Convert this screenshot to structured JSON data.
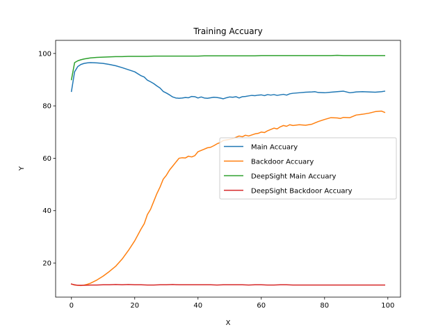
{
  "chart_data": {
    "type": "line",
    "title": "Training Accuary",
    "xlabel": "X",
    "ylabel": "Y",
    "xlim": [
      -5,
      104
    ],
    "ylim": [
      7,
      105
    ],
    "xticks": [
      0,
      20,
      40,
      60,
      80,
      100
    ],
    "yticks": [
      20,
      40,
      60,
      80,
      100
    ],
    "grid": false,
    "legend_position": "center-right",
    "series": [
      {
        "name": "Main Accuary",
        "color": "#1f77b4",
        "x": [
          0,
          1,
          2,
          3,
          4,
          5,
          6,
          8,
          10,
          12,
          14,
          16,
          18,
          20,
          22,
          23,
          24,
          25,
          26,
          27,
          28,
          29,
          30,
          31,
          32,
          33,
          34,
          35,
          36,
          37,
          38,
          39,
          40,
          41,
          42,
          43,
          44,
          45,
          46,
          47,
          48,
          49,
          50,
          51,
          52,
          53,
          54,
          55,
          56,
          57,
          58,
          59,
          60,
          61,
          62,
          63,
          64,
          65,
          66,
          67,
          68,
          69,
          70,
          72,
          74,
          76,
          77,
          78,
          80,
          82,
          84,
          85,
          86,
          88,
          90,
          92,
          94,
          96,
          98,
          99
        ],
        "y": [
          85.5,
          93,
          95,
          95.8,
          96.2,
          96.4,
          96.5,
          96.4,
          96.2,
          95.8,
          95.3,
          94.6,
          93.8,
          93.0,
          91.5,
          91.0,
          89.8,
          89.2,
          88.5,
          87.6,
          86.8,
          85.5,
          84.9,
          84.2,
          83.4,
          83.0,
          82.9,
          83.0,
          83.2,
          83.1,
          83.6,
          83.5,
          83.0,
          83.4,
          83.0,
          82.9,
          83.1,
          83.3,
          83.2,
          83.0,
          82.7,
          83.1,
          83.4,
          83.3,
          83.5,
          83.0,
          83.5,
          83.6,
          83.8,
          84.0,
          83.9,
          84.1,
          84.2,
          83.9,
          84.3,
          84.1,
          84.3,
          84.0,
          84.2,
          84.4,
          84.1,
          84.6,
          84.8,
          85.0,
          85.2,
          85.3,
          85.4,
          85.1,
          85.0,
          85.2,
          85.4,
          85.5,
          85.6,
          85.0,
          85.3,
          85.4,
          85.3,
          85.2,
          85.4,
          85.6
        ]
      },
      {
        "name": "Backdoor Accuary",
        "color": "#ff7f0e",
        "x": [
          0,
          1,
          2,
          3,
          4,
          5,
          6,
          8,
          10,
          12,
          14,
          16,
          18,
          20,
          22,
          23,
          24,
          25,
          26,
          27,
          28,
          29,
          30,
          31,
          32,
          33,
          34,
          35,
          36,
          37,
          38,
          39,
          40,
          41,
          42,
          43,
          44,
          45,
          46,
          47,
          48,
          49,
          50,
          51,
          52,
          53,
          54,
          55,
          56,
          57,
          58,
          59,
          60,
          61,
          62,
          63,
          64,
          65,
          66,
          67,
          68,
          69,
          70,
          72,
          74,
          76,
          77,
          78,
          80,
          82,
          84,
          85,
          86,
          88,
          90,
          92,
          94,
          96,
          98,
          99
        ],
        "y": [
          12.0,
          11.6,
          11.5,
          11.4,
          11.6,
          11.9,
          12.3,
          13.5,
          15.0,
          16.8,
          18.8,
          21.5,
          24.8,
          28.5,
          33.0,
          35.0,
          38.5,
          40.5,
          43.5,
          46.5,
          49.0,
          52.0,
          53.5,
          55.5,
          57.0,
          58.5,
          60.0,
          60.2,
          60.1,
          60.8,
          60.5,
          61.0,
          62.5,
          63.0,
          63.5,
          64.0,
          64.2,
          64.8,
          65.5,
          66.0,
          66.8,
          67.0,
          67.2,
          67.5,
          68.0,
          68.5,
          68.2,
          68.8,
          68.5,
          68.9,
          69.3,
          69.5,
          70.0,
          69.8,
          70.5,
          71.0,
          71.5,
          71.2,
          72.0,
          72.5,
          72.2,
          72.8,
          72.5,
          72.8,
          72.6,
          73.0,
          73.5,
          74.0,
          74.8,
          75.5,
          75.4,
          75.2,
          75.6,
          75.5,
          76.5,
          76.8,
          77.2,
          77.8,
          78.0,
          77.5
        ]
      },
      {
        "name": "DeepSight Main Accuary",
        "color": "#2ca02c",
        "x": [
          0,
          1,
          2,
          3,
          4,
          5,
          6,
          8,
          10,
          12,
          14,
          16,
          18,
          20,
          22,
          24,
          26,
          28,
          30,
          32,
          34,
          36,
          38,
          40,
          42,
          44,
          46,
          48,
          50,
          52,
          54,
          56,
          58,
          60,
          62,
          64,
          66,
          68,
          70,
          72,
          74,
          76,
          78,
          80,
          82,
          84,
          86,
          88,
          90,
          92,
          94,
          96,
          98,
          99
        ],
        "y": [
          90.0,
          96.5,
          97.2,
          97.6,
          97.9,
          98.1,
          98.3,
          98.5,
          98.6,
          98.7,
          98.8,
          98.8,
          98.9,
          98.9,
          98.9,
          98.9,
          99.0,
          99.0,
          99.0,
          99.0,
          99.0,
          99.0,
          99.0,
          99.0,
          99.1,
          99.1,
          99.1,
          99.1,
          99.1,
          99.1,
          99.1,
          99.1,
          99.1,
          99.2,
          99.2,
          99.2,
          99.2,
          99.2,
          99.2,
          99.2,
          99.2,
          99.2,
          99.2,
          99.2,
          99.2,
          99.3,
          99.2,
          99.2,
          99.2,
          99.2,
          99.2,
          99.2,
          99.2,
          99.2
        ]
      },
      {
        "name": "DeepSight Backdoor Accuary",
        "color": "#d62728",
        "x": [
          0,
          1,
          2,
          4,
          6,
          8,
          10,
          12,
          14,
          16,
          18,
          20,
          22,
          24,
          26,
          28,
          30,
          32,
          34,
          36,
          38,
          40,
          42,
          44,
          46,
          48,
          50,
          52,
          54,
          56,
          58,
          60,
          62,
          64,
          66,
          68,
          70,
          72,
          74,
          76,
          78,
          80,
          82,
          84,
          86,
          88,
          90,
          92,
          94,
          96,
          98,
          99
        ],
        "y": [
          12.0,
          11.7,
          11.5,
          11.5,
          11.6,
          11.6,
          11.7,
          11.7,
          11.8,
          11.7,
          11.8,
          11.7,
          11.7,
          11.6,
          11.6,
          11.7,
          11.7,
          11.8,
          11.7,
          11.7,
          11.7,
          11.7,
          11.7,
          11.7,
          11.6,
          11.7,
          11.7,
          11.7,
          11.7,
          11.6,
          11.7,
          11.7,
          11.6,
          11.6,
          11.7,
          11.7,
          11.6,
          11.6,
          11.6,
          11.6,
          11.6,
          11.6,
          11.6,
          11.6,
          11.6,
          11.6,
          11.6,
          11.6,
          11.6,
          11.6,
          11.6,
          11.6
        ]
      }
    ]
  }
}
